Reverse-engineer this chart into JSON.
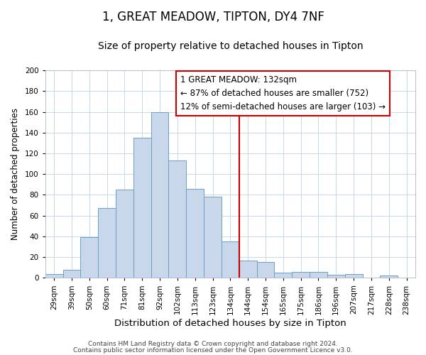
{
  "title": "1, GREAT MEADOW, TIPTON, DY4 7NF",
  "subtitle": "Size of property relative to detached houses in Tipton",
  "xlabel": "Distribution of detached houses by size in Tipton",
  "ylabel": "Number of detached properties",
  "bin_labels": [
    "29sqm",
    "39sqm",
    "50sqm",
    "60sqm",
    "71sqm",
    "81sqm",
    "92sqm",
    "102sqm",
    "113sqm",
    "123sqm",
    "134sqm",
    "144sqm",
    "154sqm",
    "165sqm",
    "175sqm",
    "186sqm",
    "196sqm",
    "207sqm",
    "217sqm",
    "228sqm",
    "238sqm"
  ],
  "bar_heights": [
    4,
    8,
    39,
    67,
    85,
    135,
    160,
    113,
    86,
    78,
    35,
    17,
    15,
    5,
    6,
    6,
    3,
    4,
    0,
    2,
    0
  ],
  "bar_color": "#c8d8ea",
  "bar_edge_color": "#6aa0c8",
  "vline_color": "#cc0000",
  "ylim": [
    0,
    200
  ],
  "yticks": [
    0,
    20,
    40,
    60,
    80,
    100,
    120,
    140,
    160,
    180,
    200
  ],
  "annotation_title": "1 GREAT MEADOW: 132sqm",
  "annotation_line1": "← 87% of detached houses are smaller (752)",
  "annotation_line2": "12% of semi-detached houses are larger (103) →",
  "footer1": "Contains HM Land Registry data © Crown copyright and database right 2024.",
  "footer2": "Contains public sector information licensed under the Open Government Licence v3.0.",
  "title_fontsize": 12,
  "subtitle_fontsize": 10,
  "xlabel_fontsize": 9.5,
  "ylabel_fontsize": 8.5,
  "tick_fontsize": 7.5,
  "footer_fontsize": 6.5,
  "annotation_fontsize": 8.5,
  "bg_color": "#ffffff",
  "grid_color": "#c8d8e8"
}
